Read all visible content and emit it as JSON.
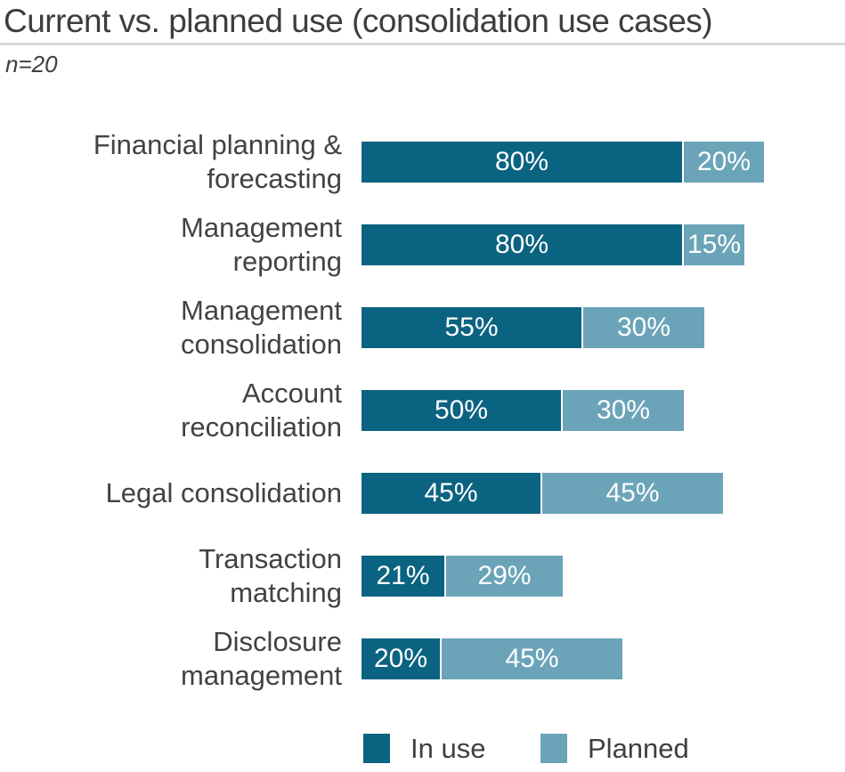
{
  "title": "Current vs. planned use (consolidation use cases)",
  "sample_note": "n=20",
  "legend": {
    "in_use_label": "In use",
    "planned_label": "Planned"
  },
  "colors": {
    "in_use": "#0a6380",
    "planned": "#6ba4b8",
    "title_text": "#3d3d3d",
    "category_text": "#424242",
    "bar_value_text": "#ffffff",
    "divider": "#d9d9d9",
    "background": "#ffffff"
  },
  "chart_data": {
    "type": "bar",
    "orientation": "horizontal",
    "stacked": true,
    "title": "Current vs. planned use (consolidation use cases)",
    "sample_size": "n=20",
    "value_format": "percent",
    "xlim": [
      0,
      100
    ],
    "grid": false,
    "legend_position": "bottom",
    "categories": [
      "Financial planning &\nforecasting",
      "Management\nreporting",
      "Management\nconsolidation",
      "Account\nreconciliation",
      "Legal consolidation",
      "Transaction\nmatching",
      "Disclosure\nmanagement"
    ],
    "series": [
      {
        "name": "In use",
        "values": [
          80,
          80,
          55,
          50,
          45,
          21,
          20
        ]
      },
      {
        "name": "Planned",
        "values": [
          20,
          15,
          30,
          30,
          45,
          29,
          45
        ]
      }
    ]
  }
}
